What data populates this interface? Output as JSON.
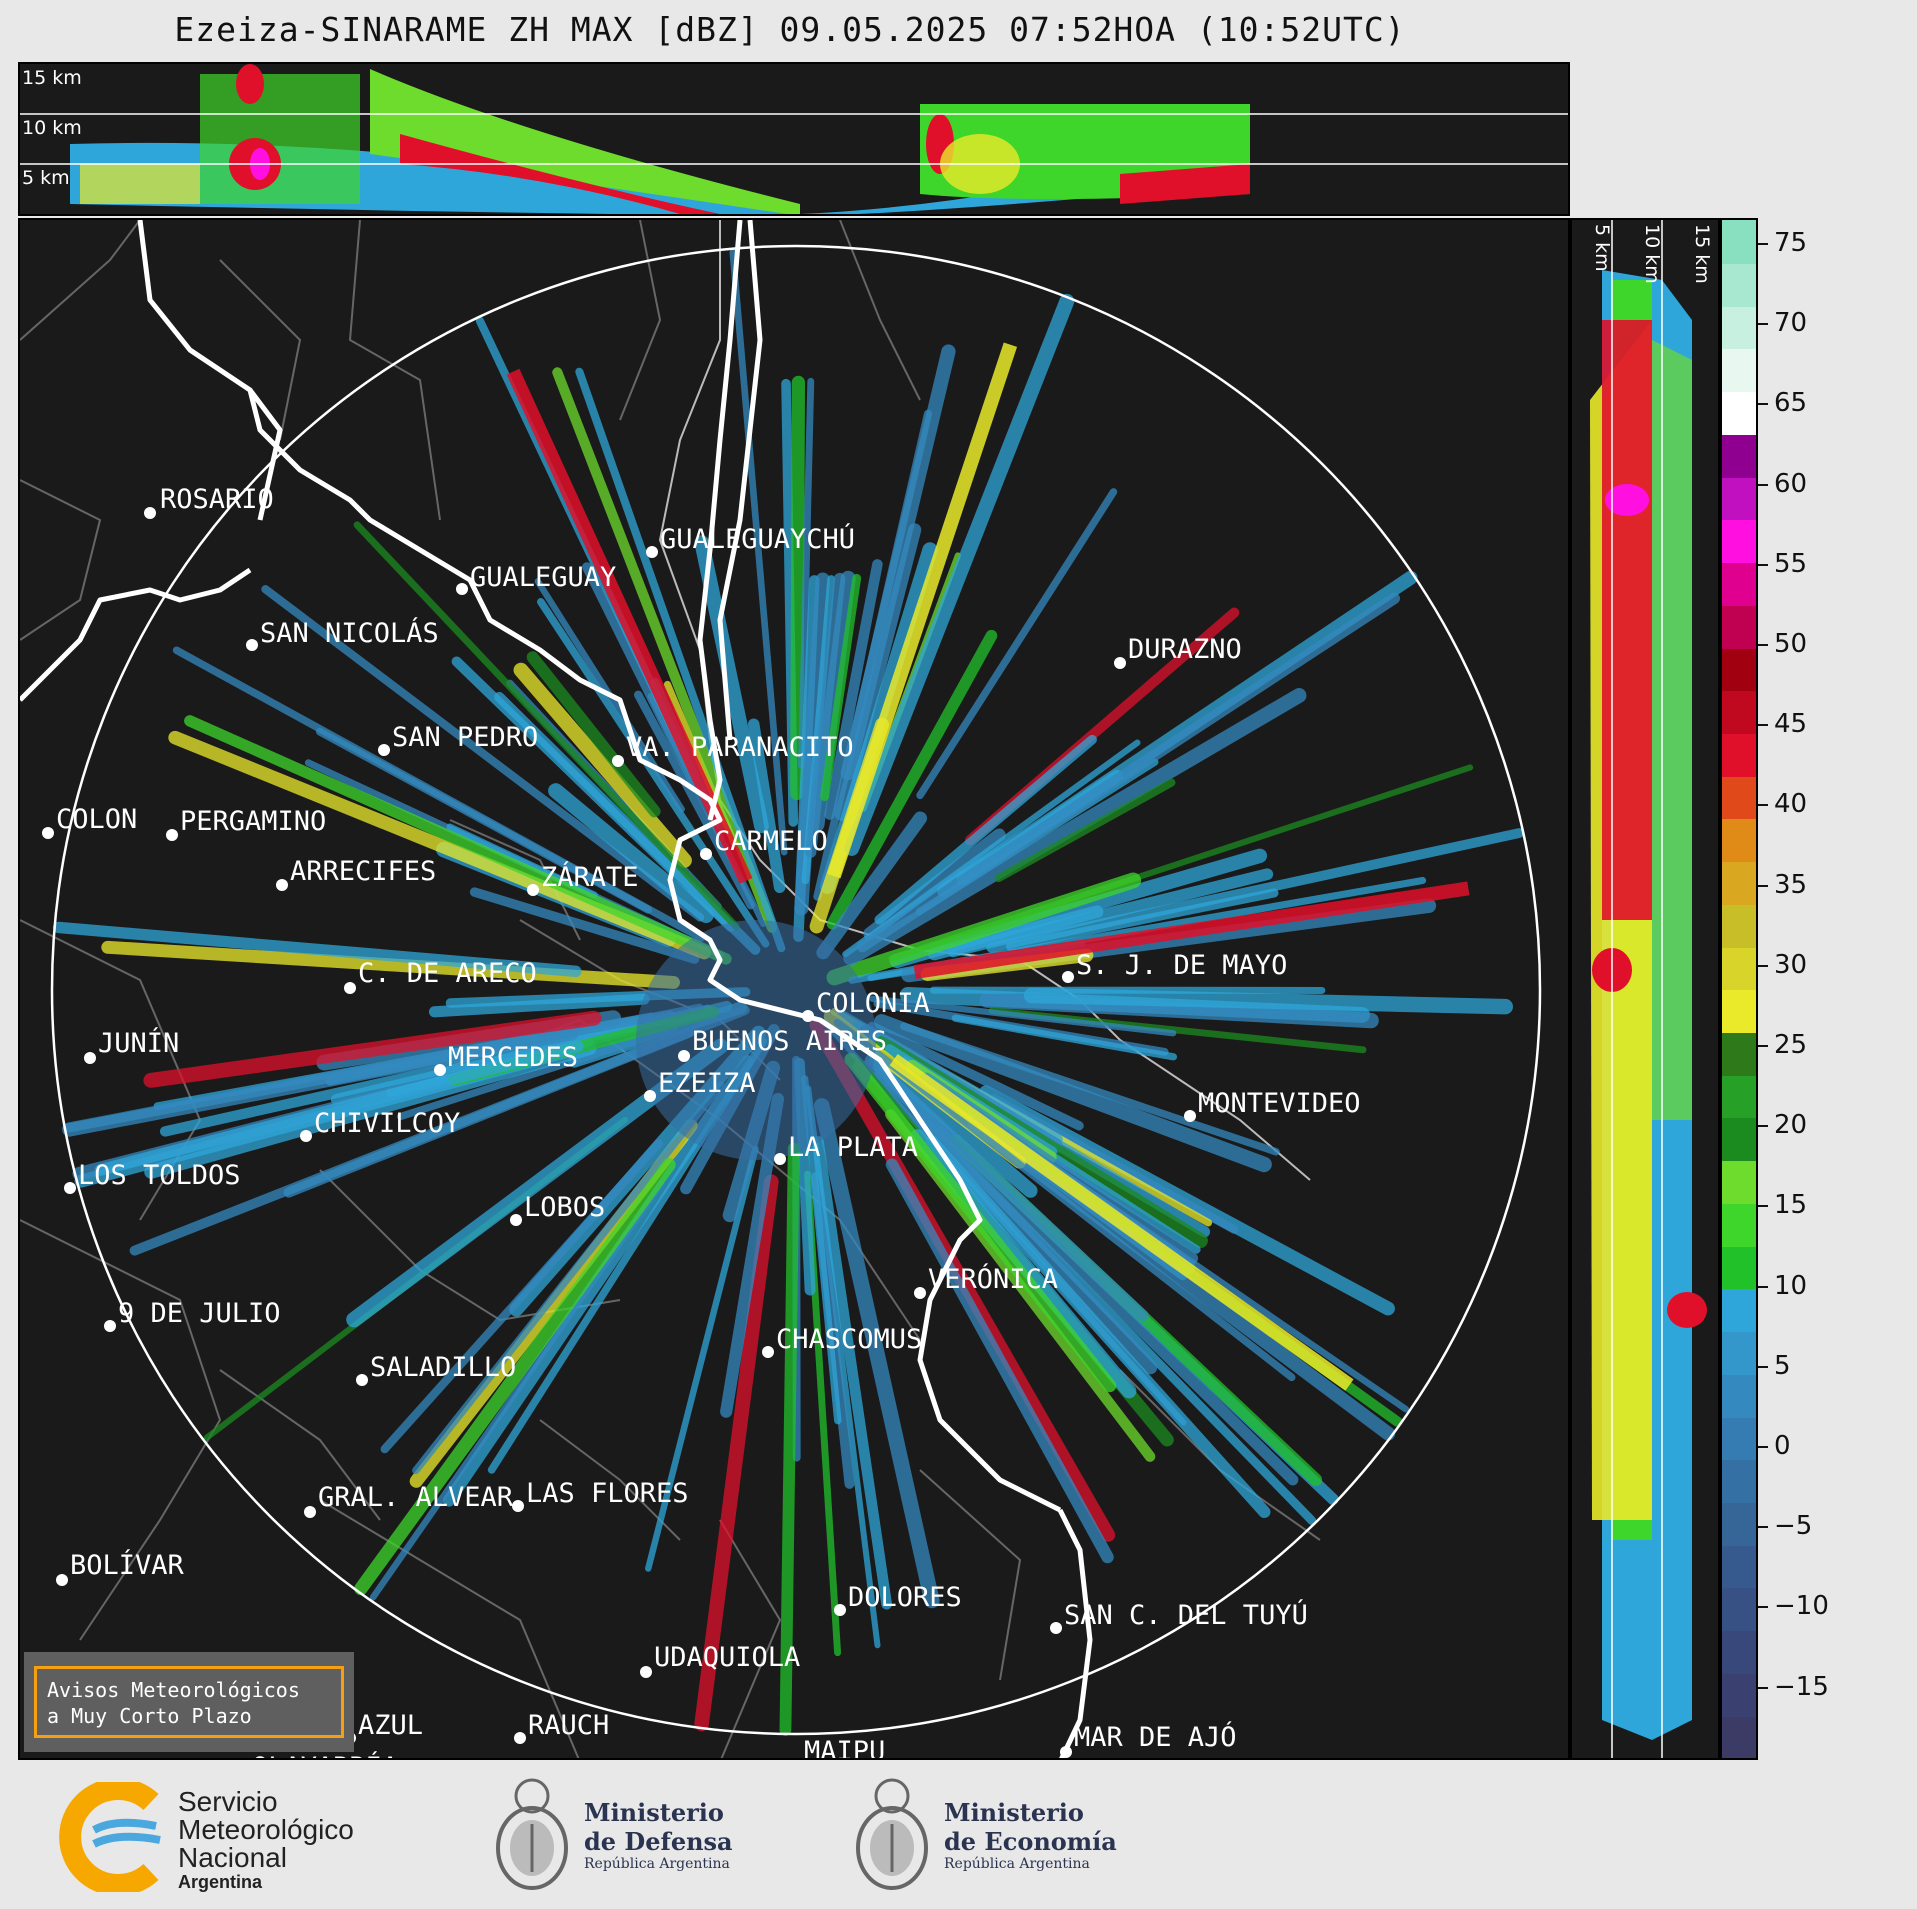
{
  "title": "Ezeiza-SINARAME ZH MAX [dBZ] 09.05.2025 07:52HOA (10:52UTC)",
  "top_panel": {
    "levels": [
      "15 km",
      "10 km",
      "5 km"
    ]
  },
  "side_panel": {
    "levels": [
      "5 km",
      "10 km",
      "15 km"
    ]
  },
  "cities": [
    {
      "name": "ROSARIO"
    },
    {
      "name": "GUALEGUAYCHÚ"
    },
    {
      "name": "GUALEGUAY"
    },
    {
      "name": "SAN NICOLÁS"
    },
    {
      "name": "DURAZNO"
    },
    {
      "name": "SAN PEDRO"
    },
    {
      "name": "VA. PARANACITO"
    },
    {
      "name": "COLON"
    },
    {
      "name": "PERGAMINO"
    },
    {
      "name": "CARMELO"
    },
    {
      "name": "ARRECIFES"
    },
    {
      "name": "ZÁRATE"
    },
    {
      "name": "C. DE ARECO"
    },
    {
      "name": "S. J. DE MAYO"
    },
    {
      "name": "COLONIA"
    },
    {
      "name": "JUNÍN"
    },
    {
      "name": "BUENOS AIRES"
    },
    {
      "name": "MERCEDES"
    },
    {
      "name": "EZEIZA"
    },
    {
      "name": "MONTEVIDEO"
    },
    {
      "name": "CHIVILCOY"
    },
    {
      "name": "LA PLATA"
    },
    {
      "name": "LOS TOLDOS"
    },
    {
      "name": "LOBOS"
    },
    {
      "name": "VERÓNICA"
    },
    {
      "name": "9 DE JULIO"
    },
    {
      "name": "CHASCOMUS"
    },
    {
      "name": "SALADILLO"
    },
    {
      "name": "GRAL. ALVEAR"
    },
    {
      "name": "LAS FLORES"
    },
    {
      "name": "BOLÍVAR"
    },
    {
      "name": "DOLORES"
    },
    {
      "name": "SAN C. DEL TUYÚ"
    },
    {
      "name": "UDAQUIOLA"
    },
    {
      "name": "AZUL"
    },
    {
      "name": "RAUCH"
    },
    {
      "name": "MAR DE AJÓ"
    },
    {
      "name": "OLAVARRÍA"
    },
    {
      "name": "MAIPU"
    }
  ],
  "colorbar": {
    "unit": "dBZ",
    "ticks": [
      "75",
      "70",
      "65",
      "60",
      "55",
      "50",
      "45",
      "40",
      "35",
      "30",
      "25",
      "20",
      "15",
      "10",
      "5",
      "0",
      "−5",
      "−10",
      "−15"
    ],
    "colors": [
      "#3b3b66",
      "#3a4170",
      "#39487a",
      "#375184",
      "#365a8e",
      "#366598",
      "#3570a5",
      "#347cb2",
      "#3489bf",
      "#3397cc",
      "#2fa6d9",
      "#21c12a",
      "#3ed62a",
      "#6ddc2c",
      "#1b8a1f",
      "#26a026",
      "#2e7a1a",
      "#eaea2a",
      "#d9d42a",
      "#c8be28",
      "#d9a820",
      "#e08a18",
      "#e04a1a",
      "#e0102a",
      "#c0081e",
      "#a00010",
      "#c00050",
      "#e00090",
      "#ff10e0",
      "#c010c0",
      "#900090",
      "#ffffff",
      "#e8f8f0",
      "#c8f0e0",
      "#a8e8d0",
      "#88e0c0"
    ]
  },
  "warning": {
    "line1": "Avisos Meteorológicos",
    "line2": "a Muy Corto Plazo"
  },
  "footer": {
    "smn": {
      "line1": "Servicio",
      "line2": "Meteorológico",
      "line3": "Nacional",
      "line4": "Argentina"
    },
    "defensa": {
      "line1": "Ministerio",
      "line2": "de Defensa",
      "line3": "República Argentina"
    },
    "economia": {
      "line1": "Ministerio",
      "line2": "de Economía",
      "line3": "República Argentina"
    }
  }
}
